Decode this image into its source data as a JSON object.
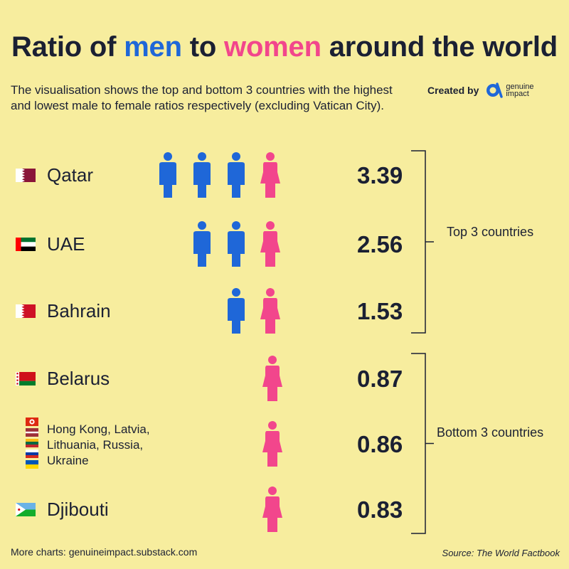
{
  "title": {
    "prefix": "Ratio of ",
    "men": "men",
    "middle": " to ",
    "women": "women",
    "suffix": " around the world"
  },
  "subtitle": "The visualisation shows the top and bottom 3 countries with the highest and lowest male to female ratios respectively (excluding Vatican City).",
  "credit": {
    "label": "Created by",
    "brand": "genuine impact",
    "icon": "genuine-impact-logo-icon"
  },
  "colors": {
    "men": "#1f67d8",
    "women": "#f2468c",
    "background": "#f7ed9e",
    "text": "#1b2033"
  },
  "chart_data": {
    "type": "pictogram",
    "metric": "male to female ratio",
    "rows": [
      {
        "label": "Qatar",
        "lines": [
          "Qatar"
        ],
        "value": 3.39,
        "value_label": "3.39",
        "flag": "flag-qatar-icon"
      },
      {
        "label": "UAE",
        "lines": [
          "UAE"
        ],
        "value": 2.56,
        "value_label": "2.56",
        "flag": "flag-uae-icon"
      },
      {
        "label": "Bahrain",
        "lines": [
          "Bahrain"
        ],
        "value": 1.53,
        "value_label": "1.53",
        "flag": "flag-bahrain-icon"
      },
      {
        "label": "Belarus",
        "lines": [
          "Belarus"
        ],
        "value": 0.87,
        "value_label": "0.87",
        "flag": "flag-belarus-icon"
      },
      {
        "label": "Hong Kong, Latvia, Lithuania, Russia, Ukraine",
        "lines": [
          "Hong Kong, Latvia,",
          "Lithuania, Russia,",
          "Ukraine"
        ],
        "value": 0.86,
        "value_label": "0.86",
        "flags": [
          "flag-hong-kong-icon",
          "flag-latvia-icon",
          "flag-lithuania-icon",
          "flag-russia-icon",
          "flag-ukraine-icon"
        ]
      },
      {
        "label": "Djibouti",
        "lines": [
          "Djibouti"
        ],
        "value": 0.83,
        "value_label": "0.83",
        "flag": "flag-djibouti-icon"
      }
    ],
    "groups": [
      {
        "label": "Top 3 countries",
        "rows": [
          0,
          1,
          2
        ]
      },
      {
        "label": "Bottom 3 countries",
        "rows": [
          3,
          4,
          5
        ]
      }
    ]
  },
  "footer": {
    "left": "More charts: genuineimpact.substack.com",
    "right": "Source: The World Factbook"
  }
}
